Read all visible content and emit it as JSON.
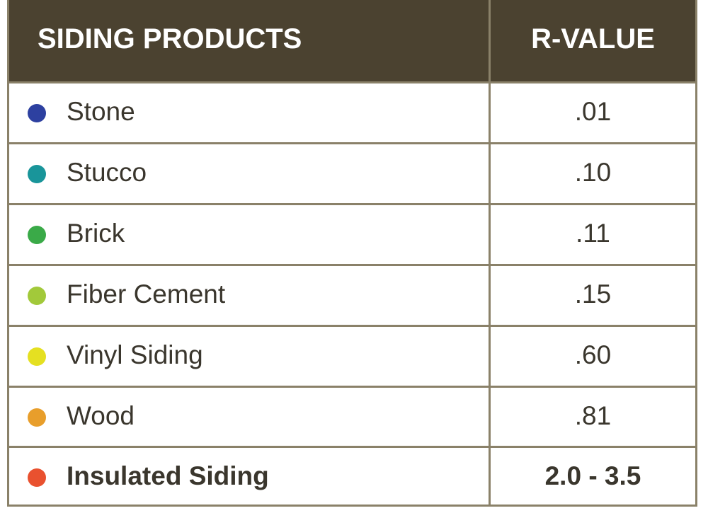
{
  "table": {
    "header": [
      "SIDING PRODUCTS",
      "R-VALUE"
    ],
    "rows": [
      [
        "Stone",
        ".01"
      ],
      [
        "Stucco",
        ".10"
      ],
      [
        "Brick",
        ".11"
      ],
      [
        "Fiber Cement",
        ".15"
      ],
      [
        "Vinyl Siding",
        ".60"
      ],
      [
        "Wood",
        ".81"
      ],
      [
        "Insulated Siding",
        "2.0 - 3.5"
      ]
    ]
  }
}
